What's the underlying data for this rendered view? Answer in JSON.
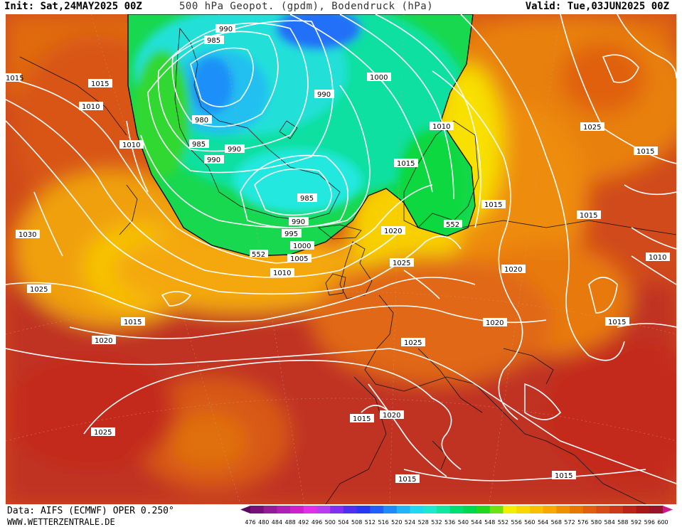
{
  "header": {
    "init": "Init: Sat,24MAY2025 00Z",
    "title": "500 hPa Geopot. (gpdm), Bodendruck (hPa)",
    "valid": "Valid: Tue,03JUN2025 00Z"
  },
  "footer": {
    "data_source": "Data: AIFS (ECMWF) OPER 0.250°",
    "website": "WWW.WETTERZENTRALE.DE"
  },
  "colorbar": {
    "ticks": [
      476,
      480,
      484,
      488,
      492,
      496,
      500,
      504,
      508,
      512,
      516,
      520,
      524,
      528,
      532,
      536,
      540,
      544,
      548,
      552,
      556,
      560,
      564,
      568,
      572,
      576,
      580,
      584,
      588,
      592,
      596,
      600
    ],
    "colors": [
      "#5a0a5a",
      "#78107a",
      "#941c96",
      "#b020b4",
      "#cc22cc",
      "#e030e8",
      "#b83cf0",
      "#8030f0",
      "#5030f0",
      "#2838f0",
      "#2060f8",
      "#1e8cf8",
      "#20b4f8",
      "#20d8f0",
      "#20e8d0",
      "#10e8a0",
      "#00e070",
      "#00d850",
      "#20d820",
      "#70e010",
      "#f0f000",
      "#f8d800",
      "#f8c000",
      "#f8a800",
      "#f09000",
      "#e87800",
      "#e06010",
      "#d84c18",
      "#cc3818",
      "#bc2418",
      "#a81818",
      "#981428",
      "#cc1888"
    ]
  },
  "map": {
    "pressure_labels": [
      {
        "text": "990"
      },
      {
        "text": "985"
      },
      {
        "text": "1000"
      },
      {
        "text": "990"
      },
      {
        "text": "980"
      },
      {
        "text": "985"
      },
      {
        "text": "990"
      },
      {
        "text": "990"
      },
      {
        "text": "985"
      },
      {
        "text": "990"
      },
      {
        "text": "995"
      },
      {
        "text": "1000"
      },
      {
        "text": "1005"
      },
      {
        "text": "1010"
      },
      {
        "text": "1010"
      },
      {
        "text": "1015"
      },
      {
        "text": "1020"
      },
      {
        "text": "1025"
      },
      {
        "text": "1015"
      },
      {
        "text": "1020"
      },
      {
        "text": "1025"
      },
      {
        "text": "1015"
      },
      {
        "text": "1025"
      },
      {
        "text": "1020"
      },
      {
        "text": "1015"
      },
      {
        "text": "1015"
      },
      {
        "text": "1010"
      },
      {
        "text": "1030"
      },
      {
        "text": "1025"
      },
      {
        "text": "1015"
      },
      {
        "text": "1020"
      },
      {
        "text": "1025"
      },
      {
        "text": "1015"
      },
      {
        "text": "1020"
      },
      {
        "text": "1015"
      },
      {
        "text": "1015"
      },
      {
        "text": "1015"
      },
      {
        "text": "1010"
      },
      {
        "text": "1015"
      },
      {
        "text": "1010"
      },
      {
        "text": "1020"
      },
      {
        "text": "1015"
      },
      {
        "text": "1000"
      }
    ],
    "geopotential_labels": [
      {
        "text": "552"
      },
      {
        "text": "552"
      }
    ]
  }
}
